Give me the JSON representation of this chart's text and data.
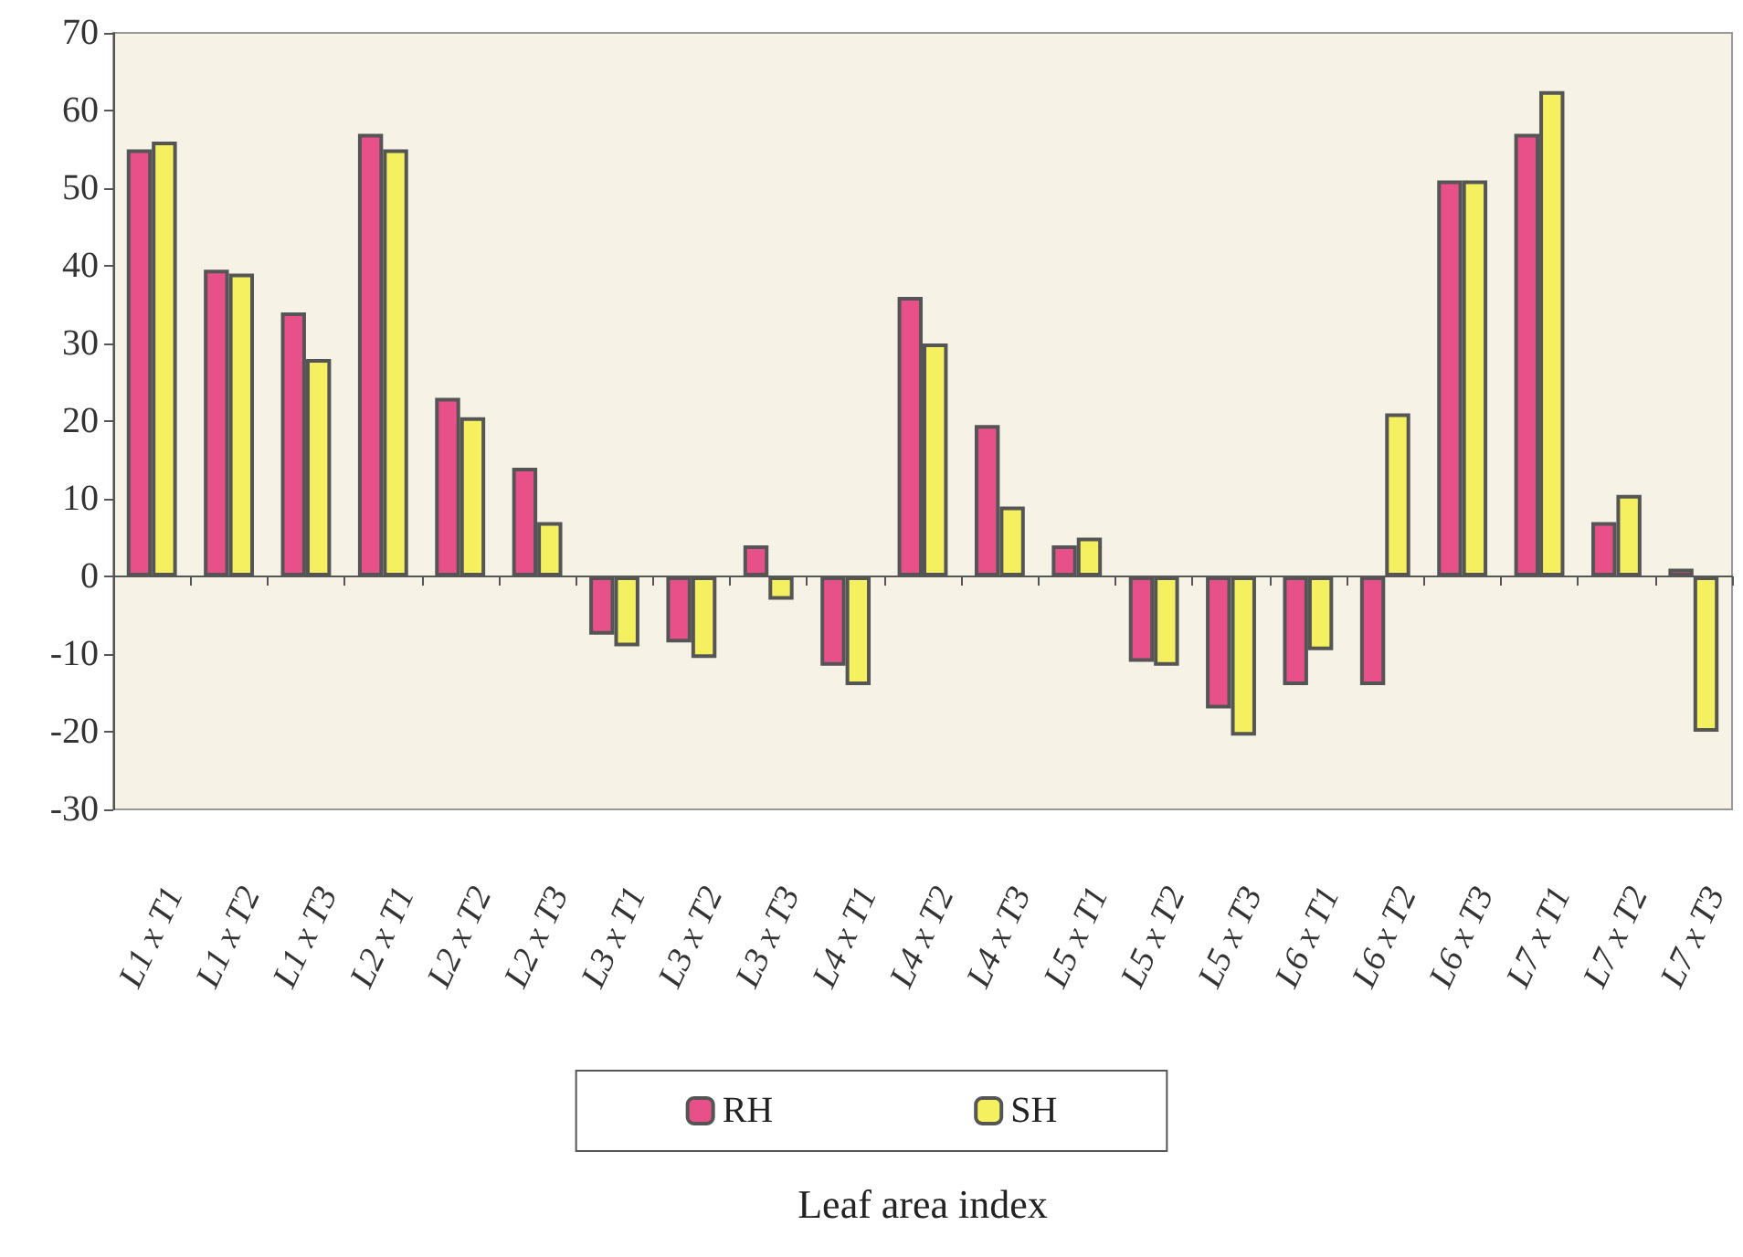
{
  "chart_data": {
    "type": "bar",
    "xlabel": "Leaf area index",
    "categories": [
      "L1 x T1",
      "L1 x T2",
      "L1 x T3",
      "L2 x T1",
      "L2 x T2",
      "L2 x T3",
      "L3 x T1",
      "L3 x T2",
      "L3 x T3",
      "L4 x T1",
      "L4 x T2",
      "L4 x T3",
      "L5 x T1",
      "L5 x T2",
      "L5 x T3",
      "L6 x T1",
      "L6 x T2",
      "L6 x T3",
      "L7 x T1",
      "L7 x T2",
      "L7 x T3"
    ],
    "series": [
      {
        "name": "RH",
        "color": "#e8508a",
        "values": [
          55,
          39.5,
          34,
          57,
          23,
          14,
          -7.5,
          -8.5,
          4,
          -11.5,
          36,
          19.5,
          4,
          -11,
          -17,
          -14,
          -14,
          51,
          57,
          7,
          1
        ]
      },
      {
        "name": "SH",
        "color": "#f4f060",
        "values": [
          56,
          39,
          28,
          55,
          20.5,
          7,
          -9,
          -10.5,
          -3,
          -14,
          30,
          9,
          5,
          -11.5,
          -20.5,
          -9.5,
          21,
          51,
          62.5,
          10.5,
          -20
        ]
      }
    ],
    "ylim": [
      -30,
      70
    ],
    "yticks": [
      -30,
      -20,
      -10,
      0,
      10,
      20,
      30,
      40,
      50,
      60,
      70
    ],
    "legend": "bottom"
  }
}
